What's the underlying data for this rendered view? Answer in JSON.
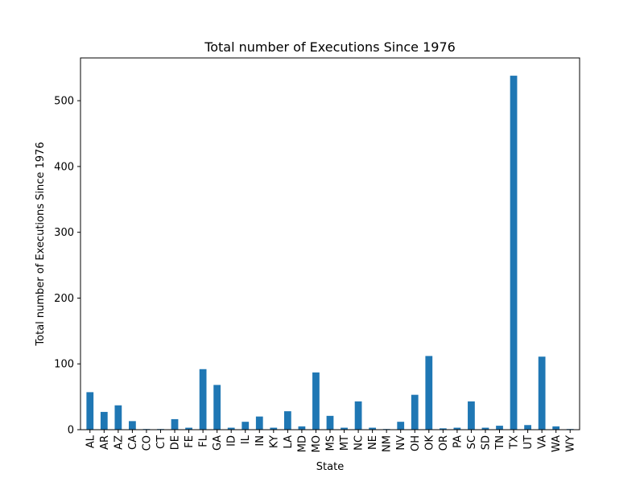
{
  "chart_data": {
    "type": "bar",
    "title": "Total number of Executions Since 1976",
    "xlabel": "State",
    "ylabel": "Total number of Executions Since 1976",
    "categories": [
      "AL",
      "AR",
      "AZ",
      "CA",
      "CO",
      "CT",
      "DE",
      "FE",
      "FL",
      "GA",
      "ID",
      "IL",
      "IN",
      "KY",
      "LA",
      "MD",
      "MO",
      "MS",
      "MT",
      "NC",
      "NE",
      "NM",
      "NV",
      "OH",
      "OK",
      "OR",
      "PA",
      "SC",
      "SD",
      "TN",
      "TX",
      "UT",
      "VA",
      "WA",
      "WY"
    ],
    "values": [
      57,
      27,
      37,
      13,
      1,
      1,
      16,
      3,
      92,
      68,
      3,
      12,
      20,
      3,
      28,
      5,
      87,
      21,
      3,
      43,
      3,
      1,
      12,
      53,
      112,
      2,
      3,
      43,
      3,
      6,
      538,
      7,
      111,
      5,
      1
    ],
    "ylim": [
      0,
      565
    ],
    "yticks": [
      0,
      100,
      200,
      300,
      400,
      500
    ],
    "grid": false,
    "colors": {
      "bar": "#1f77b4",
      "axis": "#000000"
    }
  }
}
